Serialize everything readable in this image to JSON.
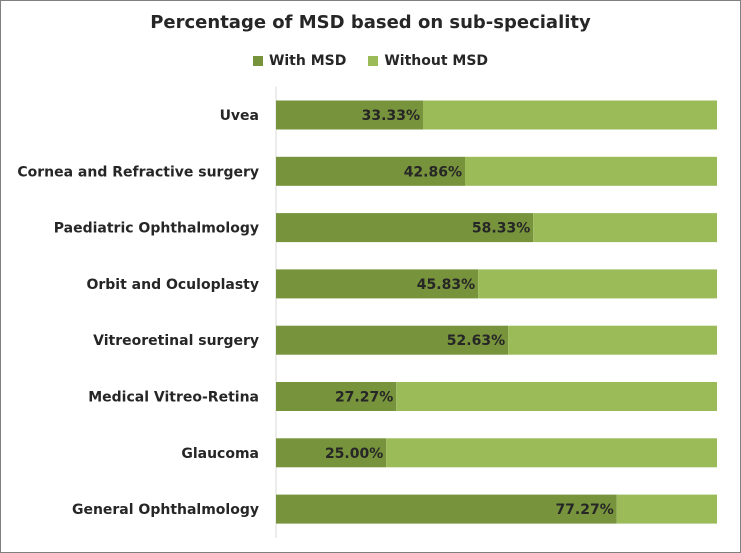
{
  "colors": {
    "with_msd": "#77933c",
    "without_msd": "#9bbb59",
    "text": "#262626"
  },
  "chart_data": {
    "type": "bar",
    "orientation": "horizontal",
    "stacked": "100%",
    "title": "Percentage of MSD based on sub-speciality",
    "legend_placement": "top",
    "categories": [
      "Uvea",
      "Cornea and Refractive surgery",
      "Paediatric Ophthalmology",
      "Orbit and Oculoplasty",
      "Vitreoretinal surgery",
      "Medical Vitreo-Retina",
      "Glaucoma",
      "General Ophthalmology"
    ],
    "series": [
      {
        "name": "With MSD",
        "values": [
          33.33,
          42.86,
          58.33,
          45.83,
          52.63,
          27.27,
          25.0,
          77.27
        ],
        "labels": [
          "33.33%",
          "42.86%",
          "58.33%",
          "45.83%",
          "52.63%",
          "27.27%",
          "25.00%",
          "77.27%"
        ]
      },
      {
        "name": "Without MSD",
        "values": [
          66.67,
          57.14,
          41.67,
          54.17,
          47.37,
          72.73,
          75.0,
          22.73
        ]
      }
    ],
    "xlim": [
      0,
      100
    ],
    "grid": false
  }
}
